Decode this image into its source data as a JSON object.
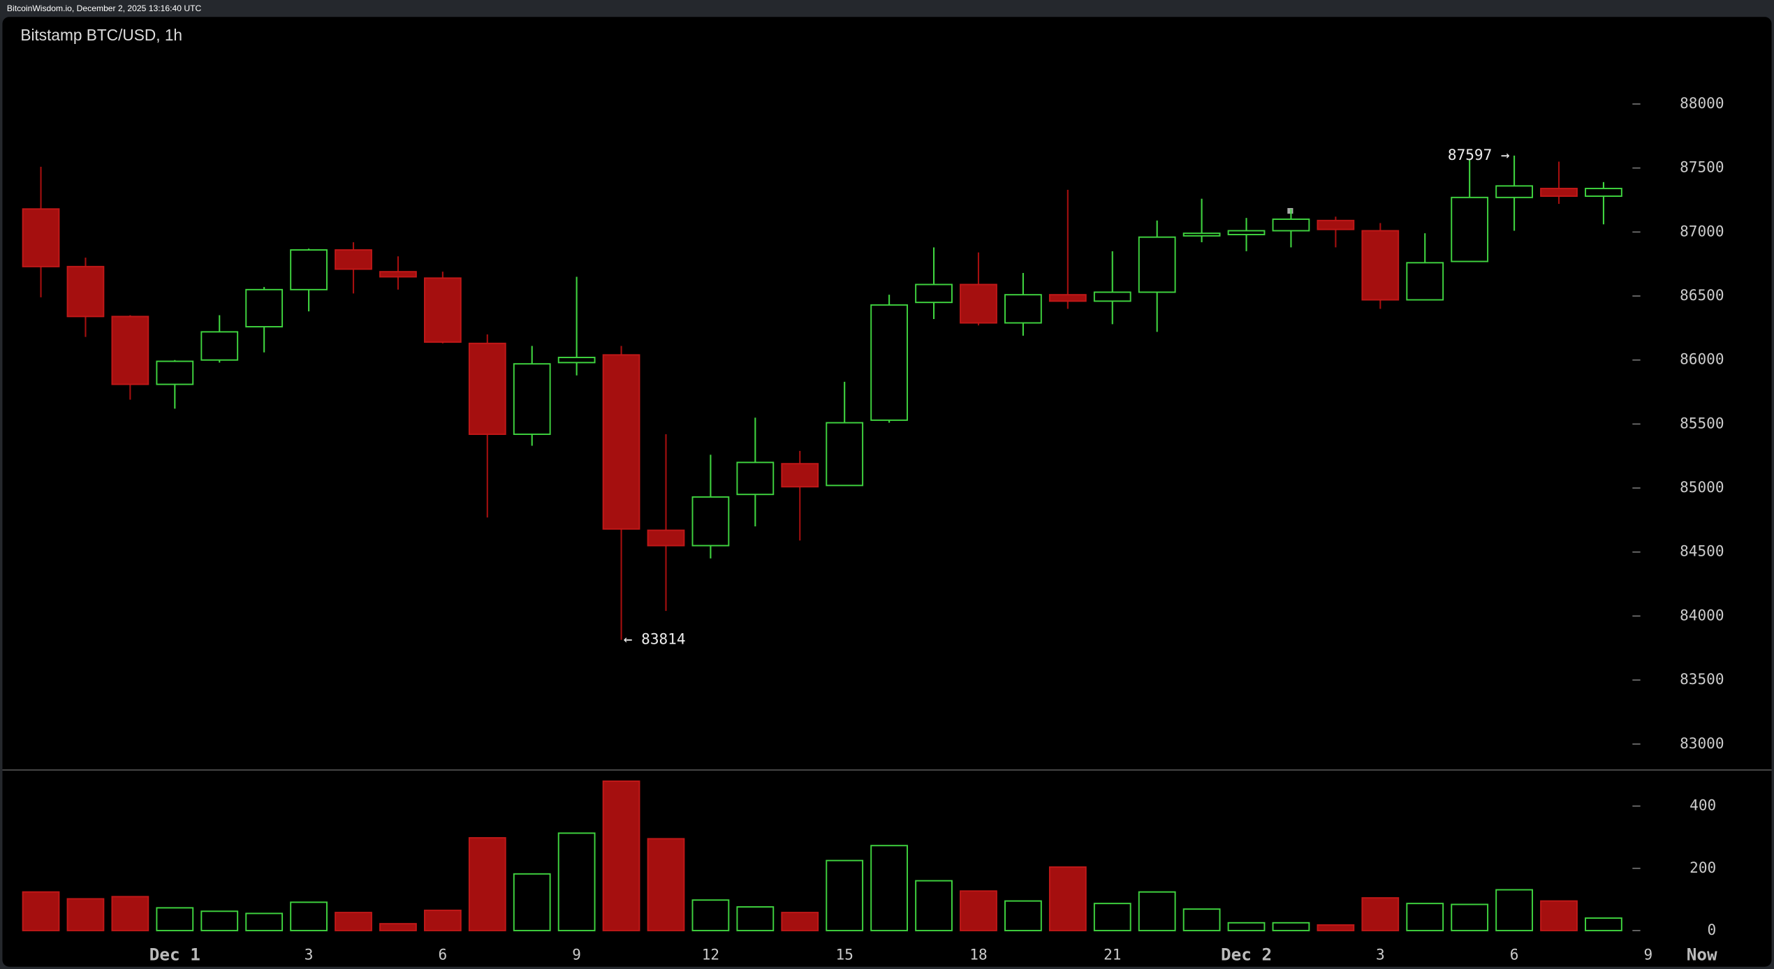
{
  "header": {
    "source": "BitcoinWisdom.io, December 2, 2025 13:16:40 UTC"
  },
  "chart_data": {
    "type": "candlestick",
    "title": "Bitstamp BTC/USD, 1h",
    "up_color": "#3fd33f",
    "down_color": "#a50f0f",
    "categories": [
      null,
      null,
      null,
      "Dec 1",
      null,
      null,
      "3",
      null,
      null,
      "6",
      null,
      null,
      "9",
      null,
      null,
      "12",
      null,
      null,
      "15",
      null,
      null,
      "18",
      null,
      null,
      "21",
      null,
      null,
      "Dec 2",
      null,
      null,
      "3",
      null,
      null,
      "6",
      null,
      null,
      "9",
      "Now"
    ],
    "open": [
      87180,
      86730,
      86340,
      85810,
      86000,
      86260,
      86550,
      86860,
      86690,
      86640,
      86130,
      85420,
      85980,
      86040,
      84670,
      84550,
      84950,
      85190,
      85020,
      85530,
      86450,
      86590,
      86290,
      86510,
      86460,
      86530,
      86970,
      86980,
      87010,
      87090,
      87010,
      86470,
      86770,
      87270,
      87340,
      87280,
      null,
      null
    ],
    "high": [
      87510,
      86800,
      86350,
      86000,
      86350,
      86570,
      86870,
      86920,
      86810,
      86690,
      86200,
      86110,
      86650,
      86110,
      85420,
      85260,
      85550,
      85290,
      85830,
      86510,
      86880,
      86840,
      86680,
      87330,
      86850,
      87090,
      87260,
      87110,
      87180,
      87120,
      87070,
      86990,
      87570,
      87597,
      87550,
      87390,
      null,
      null
    ],
    "low": [
      86490,
      86180,
      85690,
      85620,
      85980,
      86060,
      86380,
      86520,
      86550,
      86130,
      84770,
      85330,
      85880,
      83814,
      84040,
      84450,
      84700,
      84590,
      85020,
      85510,
      86320,
      86270,
      86190,
      86400,
      86280,
      86220,
      86920,
      86850,
      86880,
      86880,
      86400,
      86470,
      86770,
      87010,
      87220,
      87060,
      null,
      null
    ],
    "close": [
      86730,
      86340,
      85810,
      85990,
      86220,
      86550,
      86860,
      86710,
      86650,
      86140,
      85420,
      85970,
      86020,
      84680,
      84550,
      84930,
      85200,
      85010,
      85510,
      86430,
      86590,
      86290,
      86510,
      86460,
      86530,
      86960,
      86990,
      87010,
      87100,
      87020,
      86470,
      86760,
      87270,
      87360,
      87280,
      87340,
      null,
      null
    ],
    "volume": [
      124,
      102,
      109,
      73,
      62,
      55,
      91,
      58,
      22,
      65,
      298,
      182,
      313,
      480,
      295,
      98,
      76,
      58,
      225,
      273,
      160,
      127,
      95,
      204,
      87,
      124,
      69,
      25,
      25,
      18,
      105,
      87,
      84,
      131,
      95,
      40,
      null,
      null
    ],
    "ylim": [
      82806,
      88680
    ],
    "yticks": [
      83000,
      83500,
      84000,
      84500,
      85000,
      85500,
      86000,
      86500,
      87000,
      87500,
      88000
    ],
    "volume_ylim": [
      0,
      505
    ],
    "volume_yticks": [
      0,
      200,
      400
    ],
    "annotations": [
      {
        "label": "87597 →",
        "value": 87597,
        "at": "high"
      },
      {
        "label": "← 83814",
        "value": 83814,
        "at": "low"
      }
    ]
  }
}
